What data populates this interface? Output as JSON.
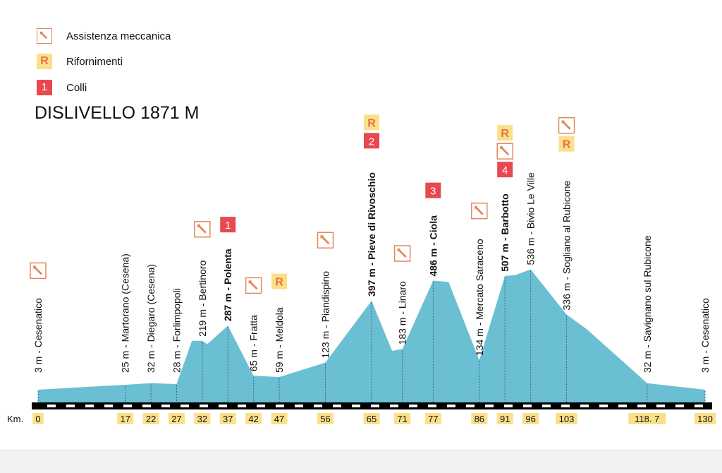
{
  "legend": [
    {
      "icon": "wrench-icon",
      "label": "Assistenza meccanica"
    },
    {
      "icon": "R",
      "label": "Rifornimenti"
    },
    {
      "icon": "1",
      "label": "Colli"
    }
  ],
  "title": "DISLIVELLO 1871 M",
  "colors": {
    "profile": "#6bbfd3",
    "climb_badge": "#e8484f",
    "supply_badge": "#fbe08a",
    "supply_text": "#e8704a",
    "wrench": "#e08a5c",
    "km_badge": "#fbe08a"
  },
  "chart_data": {
    "type": "area",
    "title": "DISLIVELLO 1871 M",
    "xlabel": "Km.",
    "ylabel": "",
    "xlim": [
      0,
      130
    ],
    "profile": [
      {
        "km": 0,
        "alt": 3
      },
      {
        "km": 17,
        "alt": 25
      },
      {
        "km": 22,
        "alt": 32
      },
      {
        "km": 27,
        "alt": 28
      },
      {
        "km": 30,
        "alt": 220
      },
      {
        "km": 32,
        "alt": 219
      },
      {
        "km": 33,
        "alt": 205
      },
      {
        "km": 37,
        "alt": 287
      },
      {
        "km": 42,
        "alt": 65
      },
      {
        "km": 47,
        "alt": 59
      },
      {
        "km": 56,
        "alt": 123
      },
      {
        "km": 65,
        "alt": 397
      },
      {
        "km": 69,
        "alt": 175
      },
      {
        "km": 71,
        "alt": 183
      },
      {
        "km": 77,
        "alt": 486
      },
      {
        "km": 80,
        "alt": 480
      },
      {
        "km": 86,
        "alt": 134
      },
      {
        "km": 91,
        "alt": 507
      },
      {
        "km": 93,
        "alt": 510
      },
      {
        "km": 96,
        "alt": 536
      },
      {
        "km": 103,
        "alt": 336
      },
      {
        "km": 107,
        "alt": 270
      },
      {
        "km": 118.7,
        "alt": 32
      },
      {
        "km": 130,
        "alt": 3
      }
    ],
    "km_ticks": [
      "0",
      "17",
      "22",
      "27",
      "32",
      "37",
      "42",
      "47",
      "56",
      "65",
      "71",
      "77",
      "86",
      "91",
      "96",
      "103",
      "118. 7",
      "130"
    ],
    "waypoints": [
      {
        "km": 0,
        "label": "3 m - Cesenatico",
        "bold": false,
        "icons": [
          "wrench"
        ]
      },
      {
        "km": 17,
        "label": "25 m - Martorano (Cesena)",
        "bold": false,
        "icons": []
      },
      {
        "km": 22,
        "label": "32 m - Diegaro (Cesena)",
        "bold": false,
        "icons": []
      },
      {
        "km": 27,
        "label": "28 m - Forlimpopoli",
        "bold": false,
        "icons": []
      },
      {
        "km": 32,
        "label": "219 m - Bertinoro",
        "bold": false,
        "icons": [
          "wrench"
        ]
      },
      {
        "km": 37,
        "label": "287 m - Polenta",
        "bold": true,
        "icons": [
          "1"
        ]
      },
      {
        "km": 42,
        "label": "65 m - Fratta",
        "bold": false,
        "icons": [
          "wrench"
        ]
      },
      {
        "km": 47,
        "label": "59 m - Meldola",
        "bold": false,
        "icons": [
          "R"
        ]
      },
      {
        "km": 56,
        "label": "123 m - Piandispino",
        "bold": false,
        "icons": [
          "wrench"
        ]
      },
      {
        "km": 65,
        "label": "397 m - Pieve di Rivoschio",
        "bold": true,
        "icons": [
          "R",
          "2"
        ]
      },
      {
        "km": 71,
        "label": "183 m - Linaro",
        "bold": false,
        "icons": [
          "wrench"
        ]
      },
      {
        "km": 77,
        "label": "486 m - Ciola",
        "bold": true,
        "icons": [
          "3"
        ]
      },
      {
        "km": 86,
        "label": "134 m - Mercato Saraceno",
        "bold": false,
        "icons": [
          "wrench"
        ]
      },
      {
        "km": 91,
        "label": "507 m - Barbotto",
        "bold": true,
        "icons": [
          "R",
          "wrench",
          "4"
        ]
      },
      {
        "km": 96,
        "label": "536 m - Bivio Le Ville",
        "bold": false,
        "icons": []
      },
      {
        "km": 103,
        "label": "336 m - Sogliano al Rubicone",
        "bold": false,
        "icons": [
          "wrench",
          "R"
        ]
      },
      {
        "km": 118.7,
        "label": "32 m - Savignano sul Rubicone",
        "bold": false,
        "icons": []
      },
      {
        "km": 130,
        "label": "3 m - Cesenatico",
        "bold": false,
        "icons": []
      }
    ]
  }
}
